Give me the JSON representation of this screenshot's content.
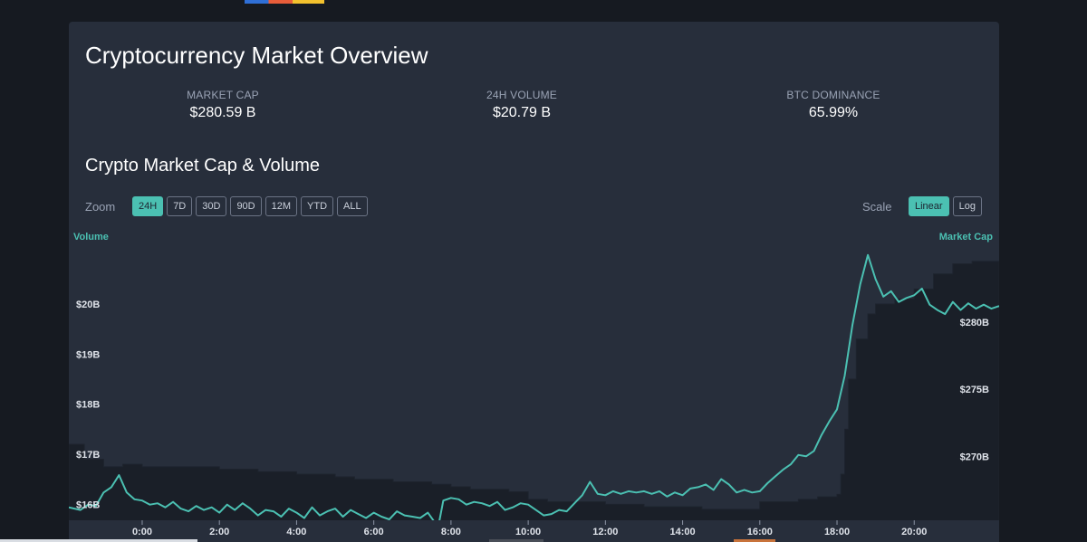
{
  "overview": {
    "title": "Cryptocurrency Market Overview",
    "stats": [
      {
        "label": "MARKET CAP",
        "value": "$280.59 B"
      },
      {
        "label": "24H VOLUME",
        "value": "$20.79 B"
      },
      {
        "label": "BTC DOMINANCE",
        "value": "65.99%"
      }
    ]
  },
  "chart_section": {
    "title": "Crypto Market Cap & Volume",
    "zoom_label": "Zoom",
    "zoom_options": [
      "24H",
      "7D",
      "30D",
      "90D",
      "12M",
      "YTD",
      "ALL"
    ],
    "zoom_selected": "24H",
    "scale_label": "Scale",
    "scale_options": [
      "Linear",
      "Log"
    ],
    "scale_selected": "Linear"
  },
  "colors": {
    "accent": "#4bc0b2",
    "card_bg": "#272e3b",
    "page_bg": "#161a21",
    "volume_area": "#1a1f28"
  },
  "chart_data": {
    "type": "area",
    "title": "Crypto Market Cap & Volume",
    "x_tick_labels": [
      "0:00",
      "2:00",
      "4:00",
      "6:00",
      "8:00",
      "10:00",
      "12:00",
      "14:00",
      "16:00",
      "18:00",
      "20:00"
    ],
    "x_hours_range": [
      -1.9,
      22.2
    ],
    "left_axis": {
      "label": "Volume",
      "ticks": [
        "$16B",
        "$17B",
        "$18B",
        "$19B",
        "$20B"
      ],
      "tick_values": [
        16,
        17,
        18,
        19,
        20
      ],
      "range": [
        15.7,
        21.3
      ],
      "unit": "$B"
    },
    "right_axis": {
      "label": "Market Cap",
      "ticks": [
        "$270B",
        "$275B",
        "$280B"
      ],
      "tick_values": [
        270,
        275,
        280
      ],
      "range": [
        265.3,
        286.2
      ],
      "unit": "$B"
    },
    "grid": false,
    "series": [
      {
        "name": "Volume",
        "kind": "area",
        "axis": "left",
        "x_hours": [
          -1.9,
          -1.5,
          -1,
          -0.5,
          0,
          0.5,
          1,
          1.5,
          2,
          2.5,
          3,
          3.5,
          4,
          4.5,
          5,
          5.5,
          6,
          6.5,
          7,
          7.5,
          8,
          8.5,
          9,
          9.5,
          10,
          10.5,
          11,
          11.5,
          12,
          12.5,
          13,
          13.5,
          14,
          14.5,
          15,
          15.5,
          16,
          16.5,
          17,
          17.5,
          18,
          18.1,
          18.2,
          18.3,
          18.5,
          18.8,
          19,
          19.5,
          20,
          20.5,
          21,
          21.5,
          22.2
        ],
        "values": [
          17.2,
          16.9,
          16.75,
          16.8,
          16.75,
          16.75,
          16.75,
          16.75,
          16.7,
          16.7,
          16.65,
          16.65,
          16.6,
          16.6,
          16.55,
          16.5,
          16.5,
          16.45,
          16.45,
          16.4,
          16.35,
          16.3,
          16.3,
          16.25,
          16.1,
          16.05,
          16.05,
          16.05,
          16.0,
          16.0,
          15.95,
          15.95,
          15.95,
          15.9,
          15.9,
          15.9,
          16.05,
          16.05,
          16.1,
          16.15,
          16.2,
          16.6,
          17.5,
          18.5,
          19.3,
          19.8,
          20.0,
          20.1,
          20.3,
          20.6,
          20.8,
          20.85,
          20.8
        ]
      },
      {
        "name": "Market Cap",
        "kind": "line",
        "axis": "right",
        "x_hours": [
          -1.9,
          -1.6,
          -1.4,
          -1.2,
          -1.0,
          -0.8,
          -0.6,
          -0.4,
          -0.2,
          0.0,
          0.2,
          0.4,
          0.6,
          0.8,
          1.0,
          1.2,
          1.4,
          1.6,
          1.8,
          2.0,
          2.2,
          2.4,
          2.6,
          2.8,
          3.0,
          3.2,
          3.4,
          3.6,
          3.8,
          4.0,
          4.2,
          4.4,
          4.6,
          4.8,
          5.0,
          5.2,
          5.4,
          5.6,
          5.8,
          6.0,
          6.2,
          6.4,
          6.6,
          6.8,
          7.0,
          7.2,
          7.4,
          7.6,
          7.7,
          7.8,
          8.0,
          8.2,
          8.4,
          8.6,
          8.8,
          9.0,
          9.2,
          9.4,
          9.6,
          9.8,
          10.0,
          10.2,
          10.4,
          10.6,
          10.8,
          11.0,
          11.2,
          11.4,
          11.6,
          11.8,
          12.0,
          12.2,
          12.4,
          12.6,
          12.8,
          13.0,
          13.2,
          13.4,
          13.6,
          13.8,
          14.0,
          14.2,
          14.4,
          14.6,
          14.8,
          15.0,
          15.2,
          15.4,
          15.6,
          15.8,
          16.0,
          16.2,
          16.4,
          16.6,
          16.8,
          17.0,
          17.2,
          17.4,
          17.6,
          17.8,
          18.0,
          18.2,
          18.4,
          18.6,
          18.8,
          19.0,
          19.2,
          19.4,
          19.6,
          19.8,
          20.0,
          20.2,
          20.4,
          20.6,
          20.8,
          21.0,
          21.2,
          21.4,
          21.6,
          21.8,
          22.0,
          22.2
        ],
        "values": [
          266.2,
          266.0,
          266.4,
          266.3,
          267.3,
          267.7,
          268.6,
          267.3,
          266.8,
          266.7,
          266.4,
          266.5,
          266.2,
          266.6,
          266.1,
          265.9,
          266.3,
          266.0,
          266.2,
          265.8,
          266.4,
          266.0,
          266.5,
          266.1,
          265.6,
          266.0,
          265.9,
          265.5,
          266.1,
          265.8,
          265.4,
          266.2,
          265.6,
          265.9,
          266.1,
          265.5,
          266.0,
          265.7,
          265.4,
          265.8,
          265.5,
          265.3,
          265.9,
          265.6,
          265.5,
          265.4,
          265.8,
          265.0,
          265.2,
          266.7,
          266.9,
          266.8,
          266.4,
          266.6,
          266.5,
          266.3,
          266.6,
          266.0,
          266.2,
          266.5,
          266.4,
          266.0,
          265.6,
          265.7,
          266.0,
          265.9,
          266.5,
          267.1,
          268.1,
          267.2,
          267.1,
          267.4,
          267.2,
          267.4,
          267.3,
          267.4,
          267.2,
          267.4,
          267.0,
          267.3,
          267.1,
          267.6,
          267.7,
          267.9,
          267.5,
          268.3,
          267.9,
          267.3,
          267.5,
          267.3,
          267.4,
          268.0,
          268.5,
          269.0,
          269.4,
          270.1,
          270.0,
          270.4,
          271.6,
          272.6,
          273.5,
          276.0,
          279.8,
          282.8,
          285.0,
          283.2,
          281.9,
          282.3,
          281.5,
          281.8,
          282.0,
          282.5,
          281.3,
          280.9,
          280.6,
          281.5,
          280.9,
          281.4,
          281.0,
          281.3,
          281.0,
          281.2
        ]
      }
    ]
  }
}
